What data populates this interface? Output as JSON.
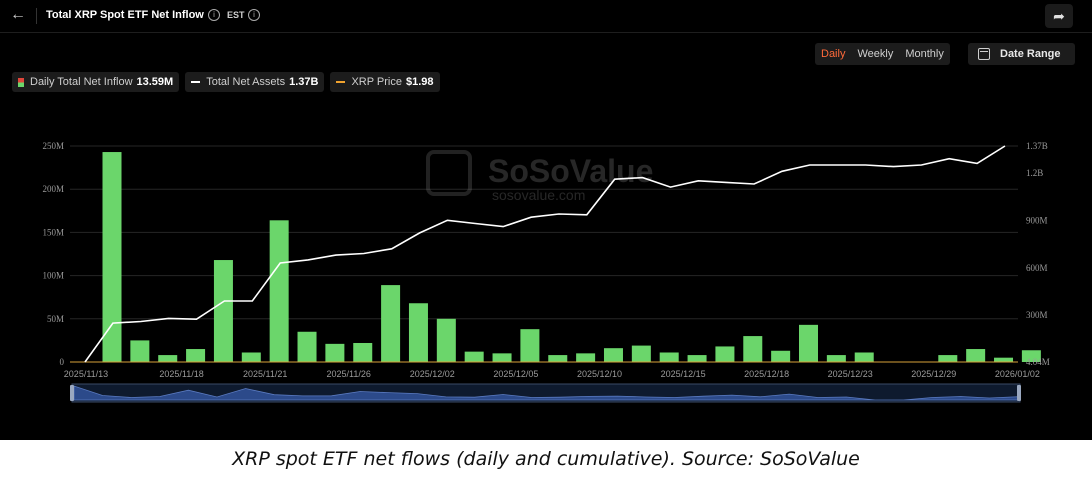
{
  "header": {
    "title": "Total XRP Spot ETF Net Inflow",
    "timezone": "EST",
    "info_icon": "info-icon",
    "back_icon": "arrow-left-icon",
    "share_icon": "share-icon"
  },
  "period_tabs": [
    {
      "label": "Daily",
      "active": true
    },
    {
      "label": "Weekly",
      "active": false
    },
    {
      "label": "Monthly",
      "active": false
    }
  ],
  "date_range": {
    "label": "Date Range",
    "icon": "calendar-icon"
  },
  "legend": [
    {
      "label": "Daily Total Net Inflow",
      "value": "13.59M",
      "color": "#6bd66b"
    },
    {
      "label": "Total Net Assets",
      "value": "1.37B",
      "color": "#ffffff"
    },
    {
      "label": "XRP Price",
      "value": "$1.98",
      "color": "#f0a22e"
    }
  ],
  "watermark": {
    "brand": "SoSoValue",
    "url": "sosovalue.com"
  },
  "caption": "XRP spot ETF net flows (daily and cumulative). Source: SoSoValue",
  "chart_data": {
    "type": "bar",
    "colors": {
      "bar": "#6bd66b",
      "line": "#ffffff",
      "price": "#f0a22e"
    },
    "x_ticks": [
      "2025/11/13",
      "2025/11/18",
      "2025/11/21",
      "2025/11/26",
      "2025/12/02",
      "2025/12/05",
      "2025/12/10",
      "2025/12/15",
      "2025/12/18",
      "2025/12/23",
      "2025/12/29",
      "2026/01/02"
    ],
    "x_tick_index": [
      0,
      3,
      6,
      9,
      12,
      15,
      18,
      21,
      24,
      27,
      30,
      33
    ],
    "y_left": {
      "ticks": [
        "0",
        "50M",
        "100M",
        "150M",
        "200M",
        "250M"
      ],
      "ylim": [
        0,
        250
      ]
    },
    "y_right": {
      "ticks": [
        "4.04M",
        "300M",
        "600M",
        "900M",
        "1.2B",
        "1.37B"
      ],
      "values": [
        4.04,
        300,
        600,
        900,
        1200,
        1370
      ],
      "ylim": [
        4.04,
        1370
      ]
    },
    "series": [
      {
        "name": "Daily Total Net Inflow",
        "kind": "bar",
        "values": [
          243,
          25,
          8,
          15,
          118,
          11,
          164,
          35,
          21,
          22,
          89,
          68,
          50,
          12,
          10,
          38,
          8,
          10,
          16,
          19,
          11,
          8,
          18,
          30,
          13,
          43,
          8,
          11,
          0,
          0,
          8,
          15,
          5,
          13.59
        ]
      },
      {
        "name": "Total Net Assets",
        "kind": "line",
        "values": [
          4,
          250,
          260,
          280,
          275,
          390,
          390,
          630,
          650,
          680,
          690,
          720,
          820,
          900,
          880,
          860,
          920,
          940,
          935,
          1160,
          1170,
          1110,
          1150,
          1140,
          1130,
          1210,
          1250,
          1250,
          1250,
          1240,
          1250,
          1290,
          1260,
          1370
        ]
      }
    ]
  }
}
